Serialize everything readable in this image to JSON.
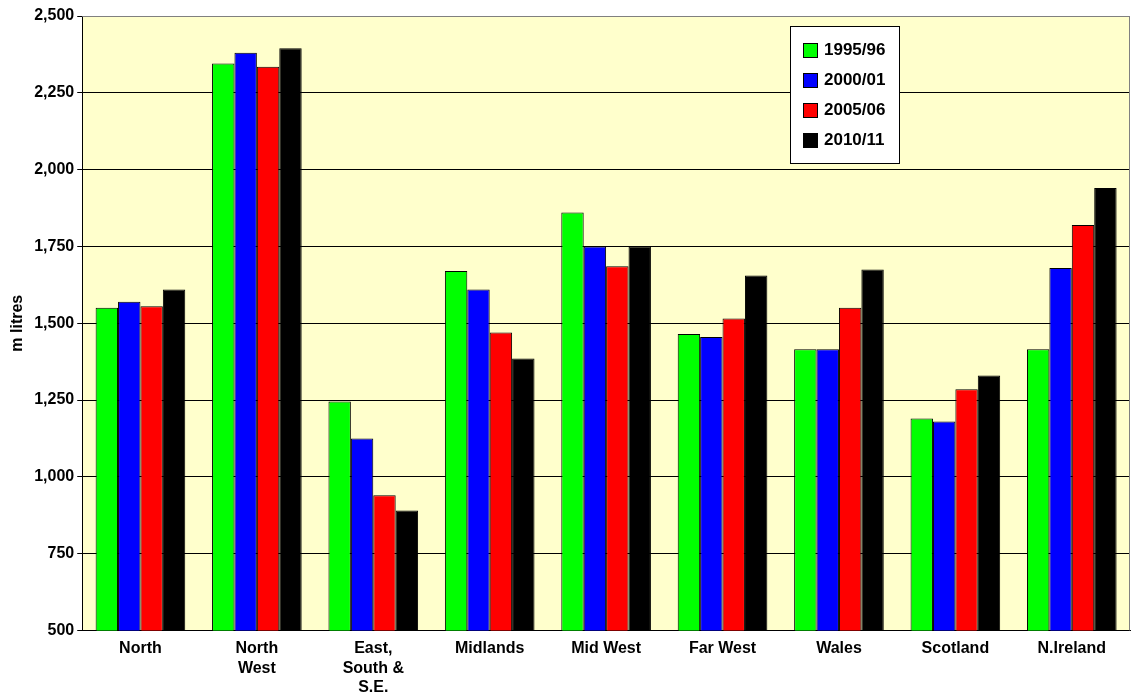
{
  "chart_data": {
    "type": "bar",
    "ylabel": "m litres",
    "categories": [
      "North",
      "North West",
      "East, South & S.E.",
      "Midlands",
      "Mid West",
      "Far West",
      "Wales",
      "Scotland",
      "N.Ireland"
    ],
    "series": [
      {
        "name": "1995/96",
        "color": "#00ff00",
        "values": [
          1550,
          2345,
          1245,
          1670,
          1860,
          1465,
          1415,
          1190,
          1415
        ]
      },
      {
        "name": "2000/01",
        "color": "#0000ff",
        "values": [
          1570,
          2380,
          1125,
          1610,
          1750,
          1455,
          1415,
          1180,
          1680
        ]
      },
      {
        "name": "2005/06",
        "color": "#ff0000",
        "values": [
          1555,
          2335,
          940,
          1470,
          1685,
          1515,
          1550,
          1285,
          1820
        ]
      },
      {
        "name": "2010/11",
        "color": "#000000",
        "values": [
          1610,
          2395,
          890,
          1385,
          1750,
          1655,
          1675,
          1330,
          1940
        ]
      }
    ],
    "ylim": [
      500,
      2500
    ],
    "yticks": [
      {
        "value": 500,
        "label": "500"
      },
      {
        "value": 750,
        "label": "750"
      },
      {
        "value": 1000,
        "label": "1,000"
      },
      {
        "value": 1250,
        "label": "1,250"
      },
      {
        "value": 1500,
        "label": "1,500"
      },
      {
        "value": 1750,
        "label": "1,750"
      },
      {
        "value": 2000,
        "label": "2,000"
      },
      {
        "value": 2250,
        "label": "2,250"
      },
      {
        "value": 2500,
        "label": "2,500"
      }
    ],
    "grid": "y",
    "legend": "top right"
  }
}
